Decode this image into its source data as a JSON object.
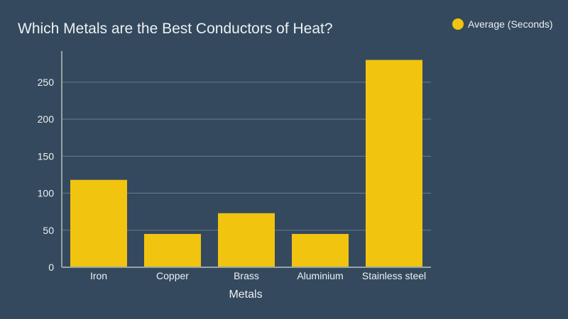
{
  "chart_data": {
    "type": "bar",
    "title": "Which Metals are the Best Conductors of Heat?",
    "xlabel": "Metals",
    "ylabel": "",
    "categories": [
      "Iron",
      "Copper",
      "Brass",
      "Aluminium",
      "Stainless steel"
    ],
    "series": [
      {
        "name": "Average (Seconds)",
        "values": [
          118,
          45,
          73,
          45,
          280
        ],
        "color": "#f1c40f"
      }
    ],
    "ylim": [
      0,
      280
    ],
    "yticks": [
      0,
      50,
      100,
      150,
      200,
      250
    ],
    "grid": true,
    "legend_position": "top-right"
  },
  "colors": {
    "background": "#34495e",
    "text": "#ecf0f1",
    "grid": "#6c7a89",
    "axis": "#95a5a6",
    "bar": "#f1c40f"
  }
}
